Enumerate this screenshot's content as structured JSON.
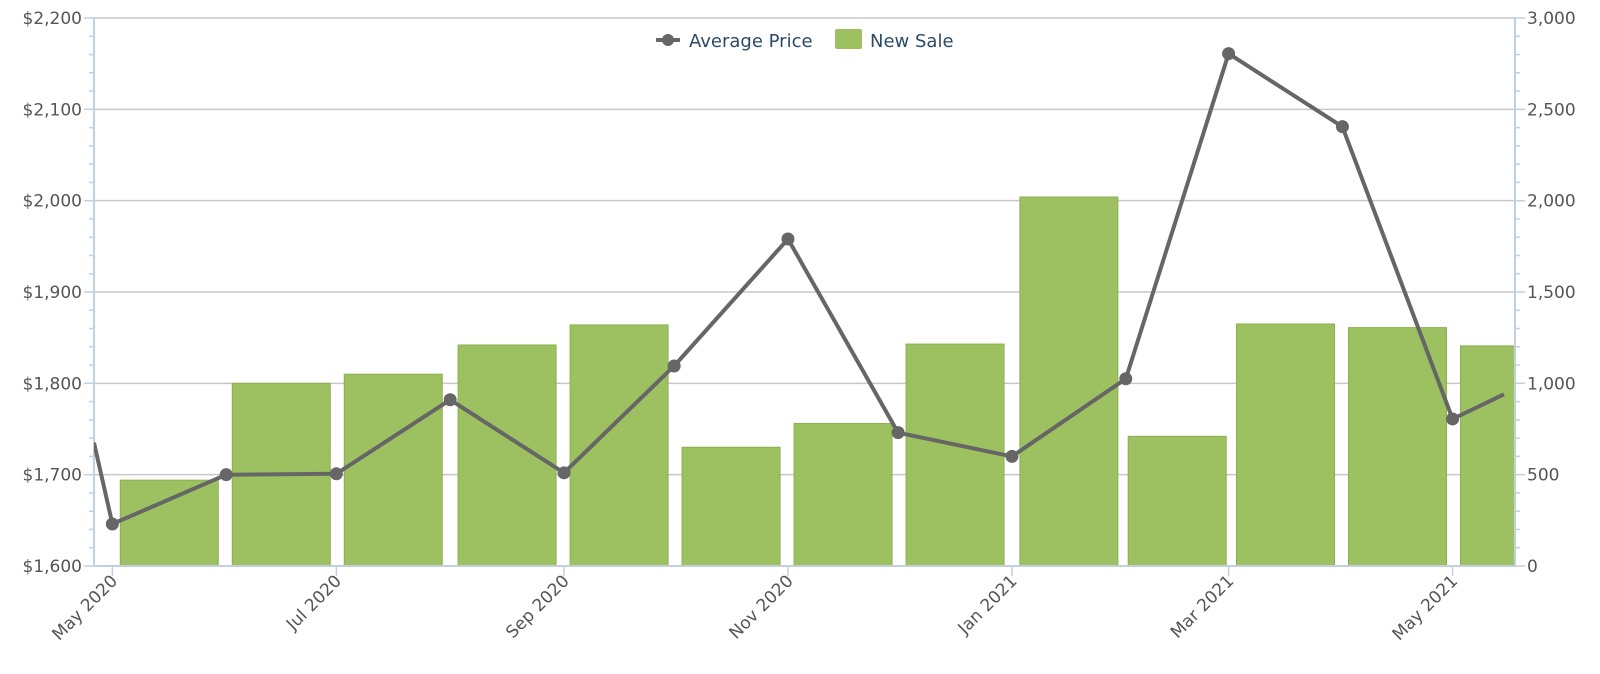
{
  "chart_data": {
    "type": "bar",
    "legend": {
      "placement": "top-center",
      "items": [
        "Average Price",
        "New Sale"
      ]
    },
    "colors": {
      "bar": "#9dc160",
      "bar_stroke": "#8cb04f",
      "line": "#666666",
      "grid": "#c8c8c8",
      "axis": "#c0d0e0"
    },
    "grid": true,
    "x_tick_labels": [
      "May 2020",
      "Jul 2020",
      "Sep 2020",
      "Nov 2020",
      "Jan 2021",
      "Mar 2021",
      "May 2021"
    ],
    "y_left": {
      "min": 1600,
      "max": 2200,
      "ticks": [
        "$1,600",
        "$1,700",
        "$1,800",
        "$1,900",
        "$2,000",
        "$2,100",
        "$2,200"
      ]
    },
    "y_right": {
      "min": 0,
      "max": 3000,
      "ticks": [
        "0",
        "500",
        "1,000",
        "1,500",
        "2,000",
        "2,500",
        "3,000"
      ]
    },
    "series": [
      {
        "name": "New Sale",
        "type": "bar",
        "axis": "right",
        "x": [
          "2020-05",
          "2020-06",
          "2020-07",
          "2020-08",
          "2020-09",
          "2020-10",
          "2020-11",
          "2020-12",
          "2021-01",
          "2021-02",
          "2021-03",
          "2021-04",
          "2021-05"
        ],
        "values": [
          470,
          1000,
          1050,
          1210,
          1320,
          650,
          780,
          1215,
          2020,
          710,
          1325,
          1305,
          1205
        ]
      },
      {
        "name": "Average Price",
        "type": "line",
        "axis": "left",
        "x": [
          "2020-04-26",
          "2020-05-01",
          "2020-06-01",
          "2020-07-01",
          "2020-08-01",
          "2020-09-01",
          "2020-10-01",
          "2020-11-01",
          "2020-12-01",
          "2021-01-01",
          "2021-02-01",
          "2021-03-01",
          "2021-04-01",
          "2021-05-01",
          "2021-05-15"
        ],
        "values": [
          1735,
          1646,
          1700,
          1701,
          1782,
          1702,
          1819,
          1958,
          1746,
          1720,
          1805,
          2161,
          2081,
          1761,
          1788
        ],
        "markers": [
          false,
          true,
          true,
          true,
          true,
          true,
          true,
          true,
          true,
          true,
          true,
          true,
          true,
          true,
          false
        ]
      }
    ]
  }
}
